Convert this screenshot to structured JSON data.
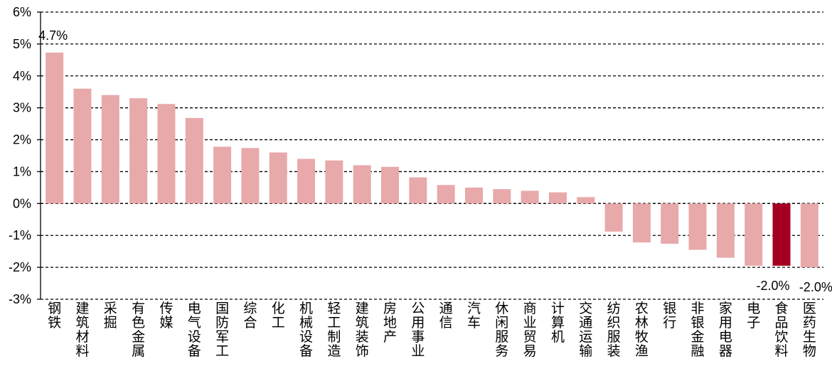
{
  "chart_data": {
    "type": "bar",
    "title": "",
    "xlabel": "",
    "ylabel": "",
    "ylim": [
      -3,
      6
    ],
    "y_ticks": [
      "6%",
      "5%",
      "4%",
      "3%",
      "2%",
      "1%",
      "0%",
      "-1%",
      "-2%",
      "-3%"
    ],
    "y_tick_values": [
      6,
      5,
      4,
      3,
      2,
      1,
      0,
      -1,
      -2,
      -3
    ],
    "grid": "horizontal dashed",
    "categories": [
      "钢铁",
      "建筑材料",
      "采掘",
      "有色金属",
      "传媒",
      "电气设备",
      "国防军工",
      "综合",
      "化工",
      "机械设备",
      "轻工制造",
      "建筑装饰",
      "房地产",
      "公用事业",
      "通信",
      "汽车",
      "休闲服务",
      "商业贸易",
      "计算机",
      "交通运输",
      "纺织服装",
      "农林牧渔",
      "银行",
      "非银金融",
      "家用电器",
      "电子",
      "食品饮料",
      "医药生物"
    ],
    "values": [
      4.73,
      3.6,
      3.4,
      3.3,
      3.12,
      2.68,
      1.78,
      1.74,
      1.6,
      1.4,
      1.35,
      1.2,
      1.15,
      0.82,
      0.58,
      0.5,
      0.45,
      0.4,
      0.35,
      0.2,
      -0.88,
      -1.22,
      -1.26,
      -1.45,
      -1.7,
      -1.95,
      -1.95,
      -2.0
    ],
    "highlight_index": 26,
    "colors": {
      "bar": "#e8a9ab",
      "highlight": "#a50021",
      "grid": "#000000",
      "text": "#000000"
    },
    "data_labels": [
      {
        "index": 0,
        "text": "4.7%"
      },
      {
        "index": 26,
        "text": "-2.0%"
      },
      {
        "index": 27,
        "text": "-2.0%"
      }
    ]
  }
}
